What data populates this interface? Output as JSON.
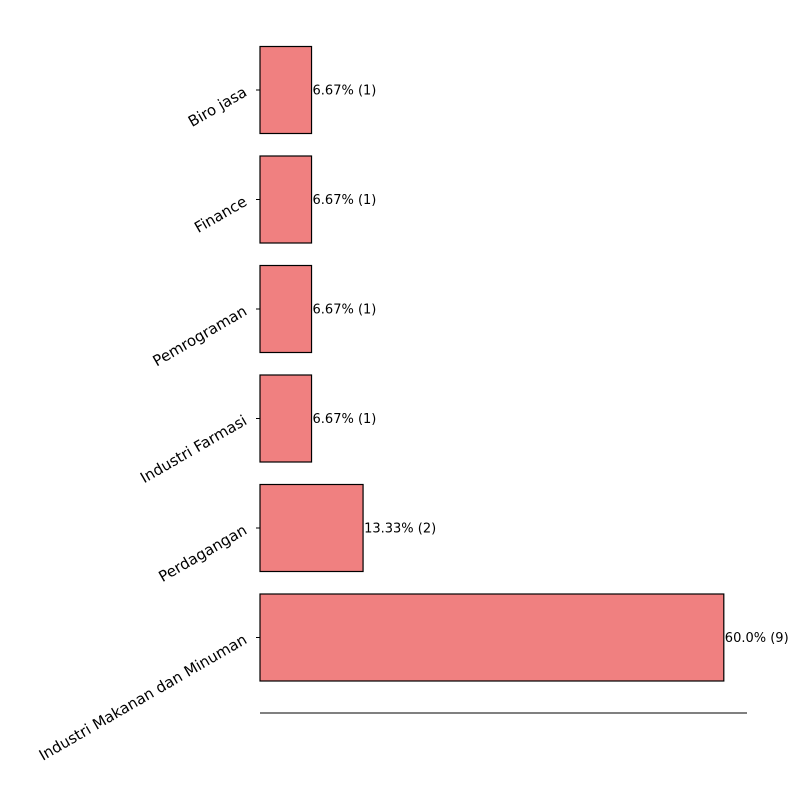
{
  "chart_data": {
    "type": "bar",
    "orientation": "horizontal",
    "categories": [
      "Industri Makanan dan Minuman",
      "Perdagangan",
      "Industri Farmasi",
      "Pemrograman",
      "Finance",
      "Biro jasa"
    ],
    "values": [
      9,
      2,
      1,
      1,
      1,
      1
    ],
    "percentages": [
      60.0,
      13.33,
      6.67,
      6.67,
      6.67,
      6.67
    ],
    "data_labels": [
      "60.0% (9)",
      "13.33% (2)",
      "6.67% (1)",
      "6.67% (1)",
      "6.67% (1)",
      "6.67% (1)"
    ],
    "title": "",
    "xlabel": "",
    "ylabel": "",
    "xlim": [
      0,
      9.45
    ],
    "grid": false,
    "legend": "none",
    "bar_color": "#f08080",
    "edge_color": "#000000"
  }
}
